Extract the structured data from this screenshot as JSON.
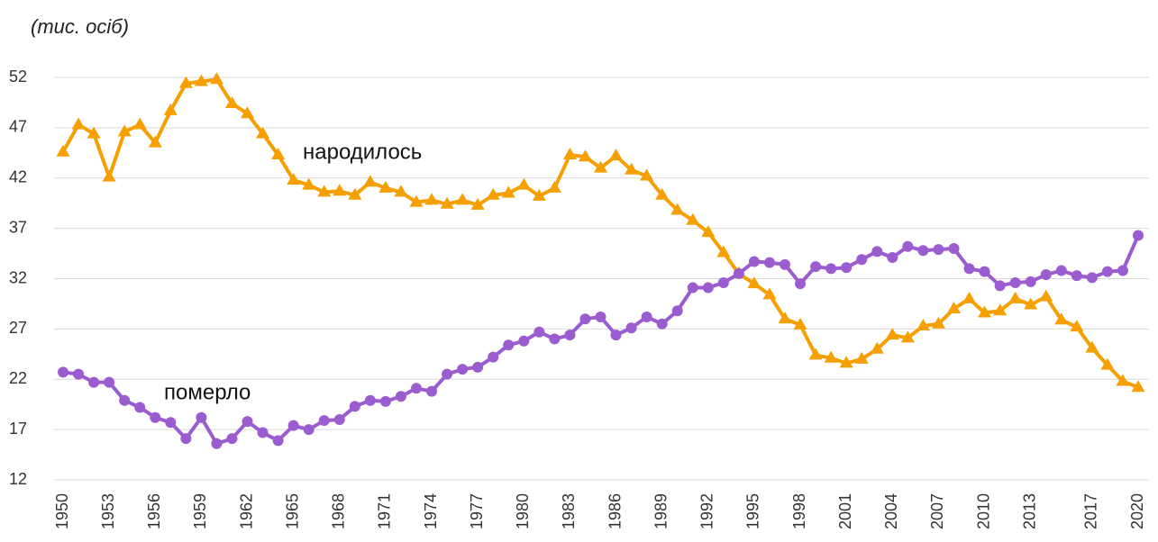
{
  "chart_data": {
    "type": "line",
    "title": "(тис. осіб)",
    "categories": [
      "1950",
      null,
      null,
      "1953",
      null,
      null,
      "1956",
      null,
      null,
      "1959",
      null,
      null,
      "1962",
      null,
      null,
      "1965",
      null,
      null,
      "1968",
      null,
      null,
      "1971",
      null,
      null,
      "1974",
      null,
      null,
      "1977",
      null,
      null,
      "1980",
      null,
      null,
      "1983",
      null,
      null,
      "1986",
      null,
      null,
      "1989",
      null,
      null,
      "1992",
      null,
      null,
      "1995",
      null,
      null,
      "1998",
      null,
      null,
      "2001",
      null,
      null,
      "2004",
      null,
      null,
      "2007",
      null,
      null,
      "2010",
      null,
      null,
      "2013",
      null,
      null,
      null,
      "2017",
      null,
      null,
      "2020"
    ],
    "series": [
      {
        "name": "народилось",
        "color": "#f5a000",
        "marker": "triangle",
        "values": [
          44.6,
          47.3,
          46.4,
          42.1,
          46.6,
          47.3,
          45.5,
          48.7,
          51.4,
          51.6,
          51.8,
          49.4,
          48.4,
          46.4,
          44.3,
          41.8,
          41.3,
          40.6,
          40.7,
          40.3,
          41.6,
          41.0,
          40.6,
          39.6,
          39.8,
          39.4,
          39.8,
          39.3,
          40.3,
          40.5,
          41.3,
          40.2,
          41.0,
          44.3,
          44.1,
          43.0,
          44.2,
          42.8,
          42.2,
          40.3,
          38.8,
          37.8,
          36.6,
          34.6,
          32.5,
          31.5,
          30.4,
          28.0,
          27.4,
          24.4,
          24.1,
          23.6,
          24.0,
          25.0,
          26.4,
          26.1,
          27.3,
          27.5,
          29.0,
          30.0,
          28.6,
          28.8,
          30.0,
          29.4,
          30.2,
          27.9,
          27.2,
          25.1,
          23.4,
          21.8,
          21.2
        ]
      },
      {
        "name": "померло",
        "color": "#9b5ccf",
        "marker": "circle",
        "values": [
          22.7,
          22.5,
          21.7,
          21.7,
          19.9,
          19.2,
          18.2,
          17.7,
          16.1,
          18.2,
          15.6,
          16.1,
          17.8,
          16.7,
          15.9,
          17.4,
          17.0,
          17.9,
          18.0,
          19.3,
          19.9,
          19.8,
          20.3,
          21.1,
          20.8,
          22.5,
          23.0,
          23.2,
          24.2,
          25.4,
          25.8,
          26.7,
          26.0,
          26.4,
          28.0,
          28.2,
          26.4,
          27.1,
          28.2,
          27.5,
          28.8,
          31.1,
          31.1,
          31.6,
          32.5,
          33.7,
          33.6,
          33.4,
          31.5,
          33.2,
          33.0,
          33.1,
          33.9,
          34.7,
          34.1,
          35.2,
          34.8,
          34.9,
          35.0,
          33.0,
          32.7,
          31.3,
          31.6,
          31.7,
          32.4,
          32.8,
          32.3,
          32.1,
          32.7,
          32.8,
          36.3
        ]
      }
    ],
    "ylim": [
      12,
      52
    ],
    "yticks": [
      12,
      17,
      22,
      27,
      32,
      37,
      42,
      47,
      52
    ],
    "grid": true
  }
}
